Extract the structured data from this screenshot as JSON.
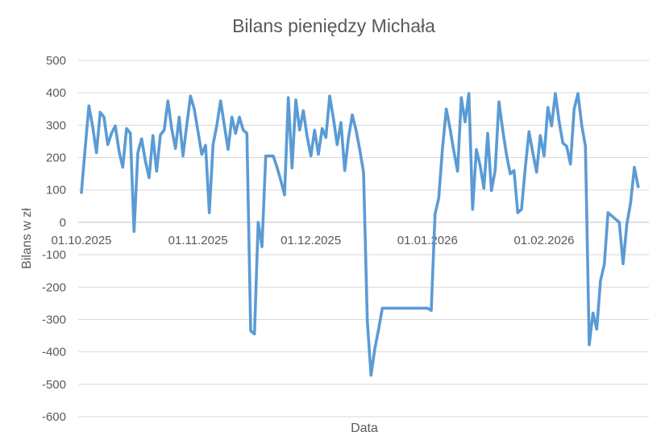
{
  "chart_data": {
    "type": "line",
    "title": "Bilans pieniędzy Michała",
    "xlabel": "Data",
    "ylabel": "Bilans w zł",
    "x_range": [
      "2025-10-01",
      "2026-02-28"
    ],
    "ylim": [
      -600,
      500
    ],
    "y_ticks": [
      500,
      400,
      300,
      200,
      100,
      0,
      -100,
      -200,
      -300,
      -400,
      -500,
      -600
    ],
    "x_ticks": [
      {
        "date": "2025-10-01",
        "label": "01.10.2025"
      },
      {
        "date": "2025-11-01",
        "label": "01.11.2025"
      },
      {
        "date": "2025-12-01",
        "label": "01.12.2025"
      },
      {
        "date": "2026-01-01",
        "label": "01.01.2026"
      },
      {
        "date": "2026-02-01",
        "label": "01.02.2026"
      }
    ],
    "grid": "horizontal",
    "legend": "none",
    "series": [
      {
        "color": "#5b9bd5",
        "points": [
          [
            "2025-10-01",
            92
          ],
          [
            "2025-10-02",
            230
          ],
          [
            "2025-10-03",
            360
          ],
          [
            "2025-10-04",
            295
          ],
          [
            "2025-10-05",
            215
          ],
          [
            "2025-10-06",
            340
          ],
          [
            "2025-10-07",
            325
          ],
          [
            "2025-10-08",
            240
          ],
          [
            "2025-10-09",
            275
          ],
          [
            "2025-10-10",
            298
          ],
          [
            "2025-10-11",
            220
          ],
          [
            "2025-10-12",
            170
          ],
          [
            "2025-10-13",
            290
          ],
          [
            "2025-10-14",
            275
          ],
          [
            "2025-10-15",
            -28
          ],
          [
            "2025-10-16",
            215
          ],
          [
            "2025-10-17",
            258
          ],
          [
            "2025-10-18",
            190
          ],
          [
            "2025-10-19",
            138
          ],
          [
            "2025-10-20",
            268
          ],
          [
            "2025-10-21",
            158
          ],
          [
            "2025-10-22",
            270
          ],
          [
            "2025-10-23",
            285
          ],
          [
            "2025-10-24",
            375
          ],
          [
            "2025-10-25",
            290
          ],
          [
            "2025-10-26",
            228
          ],
          [
            "2025-10-27",
            325
          ],
          [
            "2025-10-28",
            205
          ],
          [
            "2025-10-29",
            300
          ],
          [
            "2025-10-30",
            390
          ],
          [
            "2025-10-31",
            350
          ],
          [
            "2025-11-01",
            280
          ],
          [
            "2025-11-02",
            210
          ],
          [
            "2025-11-03",
            238
          ],
          [
            "2025-11-04",
            30
          ],
          [
            "2025-11-05",
            240
          ],
          [
            "2025-11-06",
            300
          ],
          [
            "2025-11-07",
            375
          ],
          [
            "2025-11-08",
            300
          ],
          [
            "2025-11-09",
            225
          ],
          [
            "2025-11-10",
            325
          ],
          [
            "2025-11-11",
            275
          ],
          [
            "2025-11-12",
            325
          ],
          [
            "2025-11-13",
            285
          ],
          [
            "2025-11-14",
            275
          ],
          [
            "2025-11-15",
            -335
          ],
          [
            "2025-11-16",
            -345
          ],
          [
            "2025-11-17",
            0
          ],
          [
            "2025-11-18",
            -75
          ],
          [
            "2025-11-19",
            205
          ],
          [
            "2025-11-20",
            205
          ],
          [
            "2025-11-21",
            205
          ],
          [
            "2025-11-22",
            170
          ],
          [
            "2025-11-23",
            130
          ],
          [
            "2025-11-24",
            85
          ],
          [
            "2025-11-25",
            385
          ],
          [
            "2025-11-26",
            168
          ],
          [
            "2025-11-27",
            378
          ],
          [
            "2025-11-28",
            285
          ],
          [
            "2025-11-29",
            345
          ],
          [
            "2025-11-30",
            265
          ],
          [
            "2025-12-01",
            205
          ],
          [
            "2025-12-02",
            285
          ],
          [
            "2025-12-03",
            210
          ],
          [
            "2025-12-04",
            290
          ],
          [
            "2025-12-05",
            262
          ],
          [
            "2025-12-06",
            390
          ],
          [
            "2025-12-07",
            320
          ],
          [
            "2025-12-08",
            240
          ],
          [
            "2025-12-09",
            308
          ],
          [
            "2025-12-10",
            160
          ],
          [
            "2025-12-11",
            260
          ],
          [
            "2025-12-12",
            332
          ],
          [
            "2025-12-13",
            285
          ],
          [
            "2025-12-14",
            225
          ],
          [
            "2025-12-15",
            155
          ],
          [
            "2025-12-16",
            -305
          ],
          [
            "2025-12-17",
            -472
          ],
          [
            "2025-12-18",
            -390
          ],
          [
            "2025-12-19",
            -330
          ],
          [
            "2025-12-20",
            -265
          ],
          [
            "2026-01-01",
            -265
          ],
          [
            "2026-01-02",
            -272
          ],
          [
            "2026-01-03",
            25
          ],
          [
            "2026-01-04",
            75
          ],
          [
            "2026-01-05",
            230
          ],
          [
            "2026-01-06",
            350
          ],
          [
            "2026-01-07",
            290
          ],
          [
            "2026-01-08",
            220
          ],
          [
            "2026-01-09",
            158
          ],
          [
            "2026-01-10",
            385
          ],
          [
            "2026-01-11",
            310
          ],
          [
            "2026-01-12",
            398
          ],
          [
            "2026-01-13",
            40
          ],
          [
            "2026-01-14",
            225
          ],
          [
            "2026-01-15",
            175
          ],
          [
            "2026-01-16",
            105
          ],
          [
            "2026-01-17",
            275
          ],
          [
            "2026-01-18",
            98
          ],
          [
            "2026-01-19",
            160
          ],
          [
            "2026-01-20",
            372
          ],
          [
            "2026-01-21",
            285
          ],
          [
            "2026-01-22",
            210
          ],
          [
            "2026-01-23",
            150
          ],
          [
            "2026-01-24",
            160
          ],
          [
            "2026-01-25",
            30
          ],
          [
            "2026-01-26",
            40
          ],
          [
            "2026-01-27",
            170
          ],
          [
            "2026-01-28",
            280
          ],
          [
            "2026-01-29",
            215
          ],
          [
            "2026-01-30",
            155
          ],
          [
            "2026-01-31",
            268
          ],
          [
            "2026-02-01",
            205
          ],
          [
            "2026-02-02",
            355
          ],
          [
            "2026-02-03",
            298
          ],
          [
            "2026-02-04",
            398
          ],
          [
            "2026-02-05",
            310
          ],
          [
            "2026-02-06",
            245
          ],
          [
            "2026-02-07",
            235
          ],
          [
            "2026-02-08",
            180
          ],
          [
            "2026-02-09",
            350
          ],
          [
            "2026-02-10",
            398
          ],
          [
            "2026-02-11",
            300
          ],
          [
            "2026-02-12",
            235
          ],
          [
            "2026-02-13",
            -378
          ],
          [
            "2026-02-14",
            -280
          ],
          [
            "2026-02-15",
            -330
          ],
          [
            "2026-02-16",
            -180
          ],
          [
            "2026-02-17",
            -130
          ],
          [
            "2026-02-18",
            30
          ],
          [
            "2026-02-19",
            20
          ],
          [
            "2026-02-20",
            10
          ],
          [
            "2026-02-21",
            0
          ],
          [
            "2026-02-22",
            -128
          ],
          [
            "2026-02-23",
            -5
          ],
          [
            "2026-02-24",
            60
          ],
          [
            "2026-02-25",
            170
          ],
          [
            "2026-02-26",
            110
          ]
        ]
      }
    ]
  }
}
